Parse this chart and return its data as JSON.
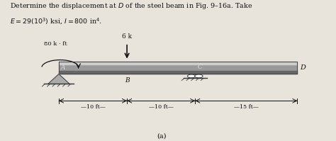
{
  "title_line1": "Determine the displacement at $D$ of the steel beam in Fig. 9–16a. Take",
  "title_line2": "$E = 29(10^3)$ ksi, $I = 800$ in$^4$.",
  "bg_color": "#e8e4dc",
  "beam_color_mid": "#999999",
  "beam_color_top": "#cccccc",
  "beam_color_bot": "#666666",
  "support_color": "#888888",
  "arrow_color": "#111111",
  "text_color": "#111111",
  "dim_color": "#111111",
  "label_a": "A",
  "label_b": "B",
  "label_c": "C",
  "label_d": "D",
  "moment_label": "80 k · ft",
  "force_label": "6 k",
  "sub_label": "(a)",
  "dim_10ft_1": "—10 ft—",
  "dim_10ft_2": "—10 ft—",
  "dim_15ft": "—15 ft—",
  "bx0": 0.175,
  "bx1": 0.885,
  "by": 0.52,
  "bh": 0.045,
  "total_span": 35.0,
  "span_AB": 10.0,
  "span_BC": 10.0,
  "span_CD": 15.0
}
